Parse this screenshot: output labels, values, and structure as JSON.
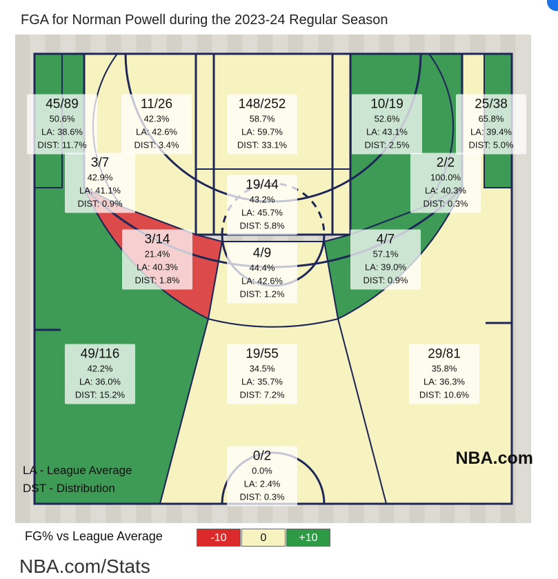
{
  "title": "FGA for Norman Powell during the 2023-24 Regular Season",
  "colors": {
    "above": "#3d9b55",
    "neutral": "#f7f3c0",
    "below": "#dc4a4a",
    "lines": "#1d2657",
    "floor": "#d9d6cf"
  },
  "chart_data": {
    "type": "shot_chart",
    "title": "FGA for Norman Powell during the 2023-24 Regular Season",
    "zones": [
      {
        "id": "left-corner-3",
        "made": 45,
        "att": 89,
        "frac": "45/89",
        "pct": "50.6%",
        "la": "LA: 38.6%",
        "dist": "DIST: 11.7%",
        "rating": "above"
      },
      {
        "id": "left-baseline-mid",
        "made": 11,
        "att": 26,
        "frac": "11/26",
        "pct": "42.3%",
        "la": "LA: 42.6%",
        "dist": "DIST: 3.4%",
        "rating": "neutral"
      },
      {
        "id": "restricted-area",
        "made": 148,
        "att": 252,
        "frac": "148/252",
        "pct": "58.7%",
        "la": "LA: 59.7%",
        "dist": "DIST: 33.1%",
        "rating": "neutral"
      },
      {
        "id": "right-baseline-mid",
        "made": 10,
        "att": 19,
        "frac": "10/19",
        "pct": "52.6%",
        "la": "LA: 43.1%",
        "dist": "DIST: 2.5%",
        "rating": "above"
      },
      {
        "id": "right-corner-3",
        "made": 25,
        "att": 38,
        "frac": "25/38",
        "pct": "65.8%",
        "la": "LA: 39.4%",
        "dist": "DIST: 5.0%",
        "rating": "above"
      },
      {
        "id": "left-short-mid",
        "made": 3,
        "att": 7,
        "frac": "3/7",
        "pct": "42.9%",
        "la": "LA: 41.1%",
        "dist": "DIST: 0.9%",
        "rating": "neutral"
      },
      {
        "id": "in-the-paint",
        "made": 19,
        "att": 44,
        "frac": "19/44",
        "pct": "43.2%",
        "la": "LA: 45.7%",
        "dist": "DIST: 5.8%",
        "rating": "neutral"
      },
      {
        "id": "right-short-mid",
        "made": 2,
        "att": 2,
        "frac": "2/2",
        "pct": "100.0%",
        "la": "LA: 40.3%",
        "dist": "DIST: 0.3%",
        "rating": "above"
      },
      {
        "id": "left-wing-mid",
        "made": 3,
        "att": 14,
        "frac": "3/14",
        "pct": "21.4%",
        "la": "LA: 40.3%",
        "dist": "DIST: 1.8%",
        "rating": "below"
      },
      {
        "id": "top-key-mid",
        "made": 4,
        "att": 9,
        "frac": "4/9",
        "pct": "44.4%",
        "la": "LA: 42.6%",
        "dist": "DIST: 1.2%",
        "rating": "neutral"
      },
      {
        "id": "right-wing-mid",
        "made": 4,
        "att": 7,
        "frac": "4/7",
        "pct": "57.1%",
        "la": "LA: 39.0%",
        "dist": "DIST: 0.9%",
        "rating": "above"
      },
      {
        "id": "left-wing-3",
        "made": 49,
        "att": 116,
        "frac": "49/116",
        "pct": "42.2%",
        "la": "LA: 36.0%",
        "dist": "DIST: 15.2%",
        "rating": "above"
      },
      {
        "id": "top-key-3",
        "made": 19,
        "att": 55,
        "frac": "19/55",
        "pct": "34.5%",
        "la": "LA: 35.7%",
        "dist": "DIST: 7.2%",
        "rating": "neutral"
      },
      {
        "id": "right-wing-3",
        "made": 29,
        "att": 81,
        "frac": "29/81",
        "pct": "35.8%",
        "la": "LA: 36.3%",
        "dist": "DIST: 10.6%",
        "rating": "neutral"
      },
      {
        "id": "backcourt",
        "made": 0,
        "att": 2,
        "frac": "0/2",
        "pct": "0.0%",
        "la": "LA: 2.4%",
        "dist": "DIST: 0.3%",
        "rating": "neutral"
      }
    ],
    "legend": {
      "label": "FG% vs League Average",
      "items": [
        {
          "text": "-10",
          "color": "#dc2a2a",
          "text_color": "#ffffff"
        },
        {
          "text": "0",
          "color": "#f7f3c0",
          "text_color": "#111111"
        },
        {
          "text": "+10",
          "color": "#2f9a45",
          "text_color": "#ffffff"
        }
      ]
    }
  },
  "notes": {
    "la": "LA - League Average",
    "dst": "DST - Distribution"
  },
  "brand": "NBA.com",
  "footer": "NBA.com/Stats"
}
